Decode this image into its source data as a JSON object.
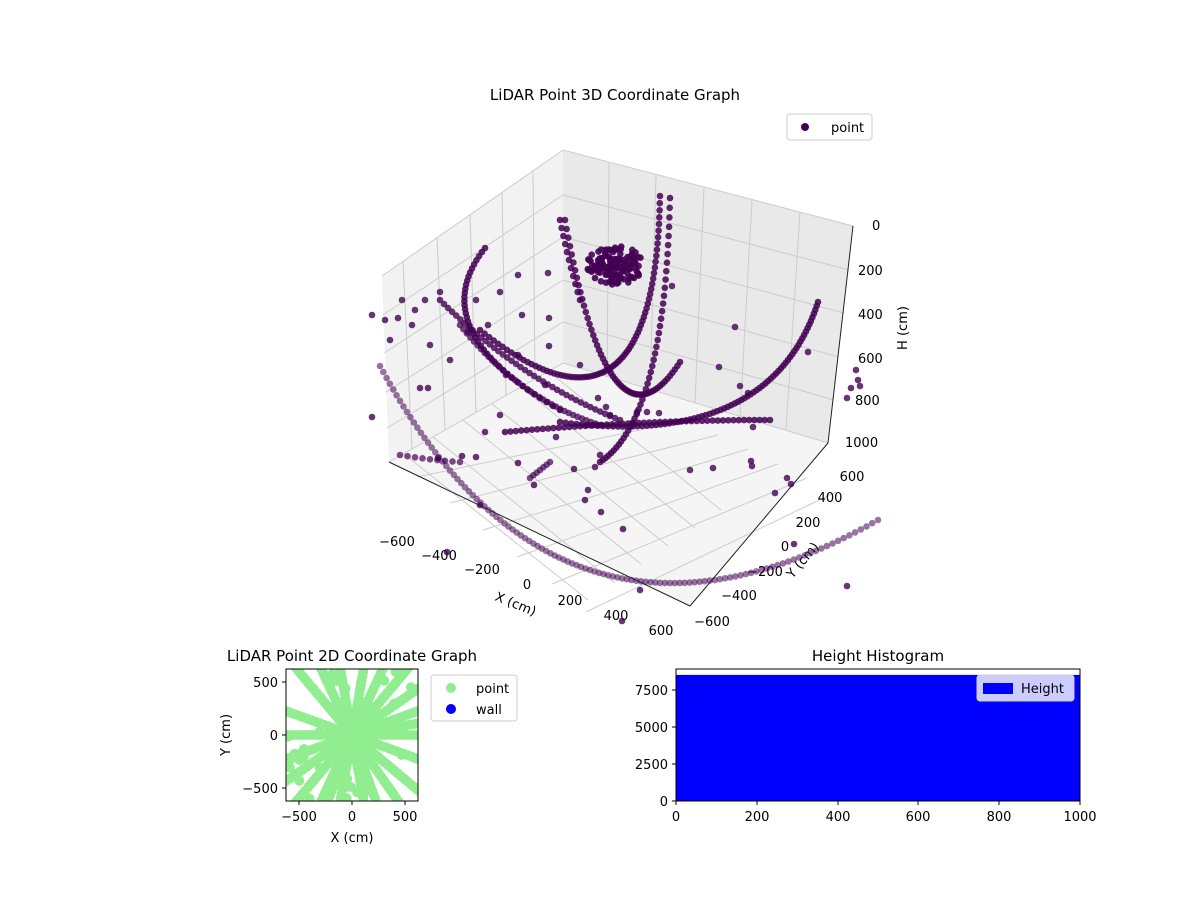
{
  "chart_data": [
    {
      "type": "scatter",
      "projection": "3d",
      "title": "LiDAR Point 3D Coordinate Graph",
      "xlabel": "X (cm)",
      "ylabel": "Y (cm)",
      "zlabel": "H (cm)",
      "xticks": [
        "−600",
        "−400",
        "−200",
        "0",
        "200",
        "400",
        "600"
      ],
      "yticks": [
        "−600",
        "−400",
        "−200",
        "0",
        "200",
        "400",
        "600"
      ],
      "zticks": [
        "0",
        "200",
        "400",
        "600",
        "800",
        "1000"
      ],
      "xlim": [
        -650,
        650
      ],
      "ylim": [
        -650,
        650
      ],
      "zlim": [
        0,
        1000
      ],
      "z_inverted": true,
      "legend": [
        "point"
      ],
      "legend_loc": "upper right",
      "grid": true,
      "colors": {
        "point": "#440154"
      }
    },
    {
      "type": "scatter",
      "title": "LiDAR Point 2D Coordinate Graph",
      "xlabel": "X (cm)",
      "ylabel": "Y (cm)",
      "xticks": [
        "−500",
        "0",
        "500"
      ],
      "yticks": [
        "500",
        "0",
        "−500"
      ],
      "xlim": [
        -620,
        620
      ],
      "ylim": [
        -620,
        620
      ],
      "legend": [
        "point",
        "wall"
      ],
      "legend_loc": "outside right",
      "colors": {
        "point": "#90ee90",
        "wall": "#0000ff"
      },
      "ray_angles_deg": [
        0,
        10,
        20,
        35,
        50,
        65,
        80,
        100,
        115,
        130,
        160,
        180,
        200,
        215,
        230,
        245,
        250,
        260,
        280,
        290,
        305,
        320,
        340
      ]
    },
    {
      "type": "bar",
      "title": "Height Histogram",
      "xticks": [
        "0",
        "200",
        "400",
        "600",
        "800",
        "1000"
      ],
      "yticks": [
        "0",
        "2500",
        "5000",
        "7500"
      ],
      "xlim": [
        0,
        1000
      ],
      "ylim": [
        0,
        8900
      ],
      "bins": {
        "x_start": 0,
        "x_end": 1000,
        "count": 1,
        "value": 8500
      },
      "legend": [
        "Height"
      ],
      "legend_loc": "upper right",
      "colors": {
        "Height": "#0000ff"
      }
    }
  ]
}
